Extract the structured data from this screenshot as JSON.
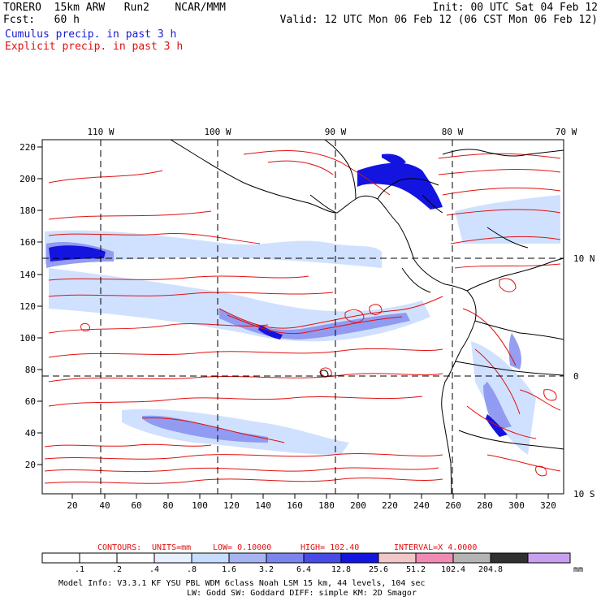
{
  "header": {
    "line1_left": "TORERO  15km ARW   Run2    NCAR/MMM",
    "line1_right": "Init: 00 UTC Sat 04 Feb 12",
    "line2_left": "Fcst:   60 h",
    "line2_right": "Valid: 12 UTC Mon 06 Feb 12 (06 CST Mon 06 Feb 12)",
    "field1": "Cumulus precip. in past 3 h",
    "field2": "Explicit precip. in past 3 h"
  },
  "map": {
    "top_lon_labels": [
      "110 W",
      "100 W",
      "90 W",
      "80 W",
      "70 W"
    ],
    "right_lat_labels": [
      "10 N",
      "0",
      "10 S"
    ],
    "y_ticks": [
      "220",
      "200",
      "180",
      "160",
      "140",
      "120",
      "100",
      "80",
      "60",
      "40",
      "20"
    ],
    "x_ticks": [
      "20",
      "40",
      "60",
      "80",
      "100",
      "120",
      "140",
      "160",
      "180",
      "200",
      "220",
      "240",
      "260",
      "280",
      "300",
      "320"
    ]
  },
  "contours_line": {
    "label": "CONTOURS:",
    "units": "UNITS=mm",
    "low": "LOW= 0.10000",
    "high": "HIGH=  102.40",
    "interval": "INTERVAL=X  4.0000"
  },
  "colorbar": {
    "labels": [
      ".1",
      ".2",
      ".4",
      ".8",
      "1.6",
      "3.2",
      "6.4",
      "12.8",
      "25.6",
      "51.2",
      "102.4",
      "204.8"
    ],
    "unit": "mm",
    "colors": [
      "#ffffff",
      "#ffffff",
      "#ffffff",
      "#e6f0ff",
      "#c8dcff",
      "#a6b4f2",
      "#7c84ee",
      "#4a4ae6",
      "#1414e0",
      "#f0c8c8",
      "#f08cb4",
      "#b4b4b4",
      "#303030",
      "#c8a0f0"
    ]
  },
  "footer": {
    "line1": "Model Info: V3.3.1    KF     YSU PBL  WDM 6class  Noah LSM  15 km,    44 levels,  104 sec",
    "line2": "LW: Godd SW: Goddard DIFF: simple KM: 2D Smagor"
  }
}
